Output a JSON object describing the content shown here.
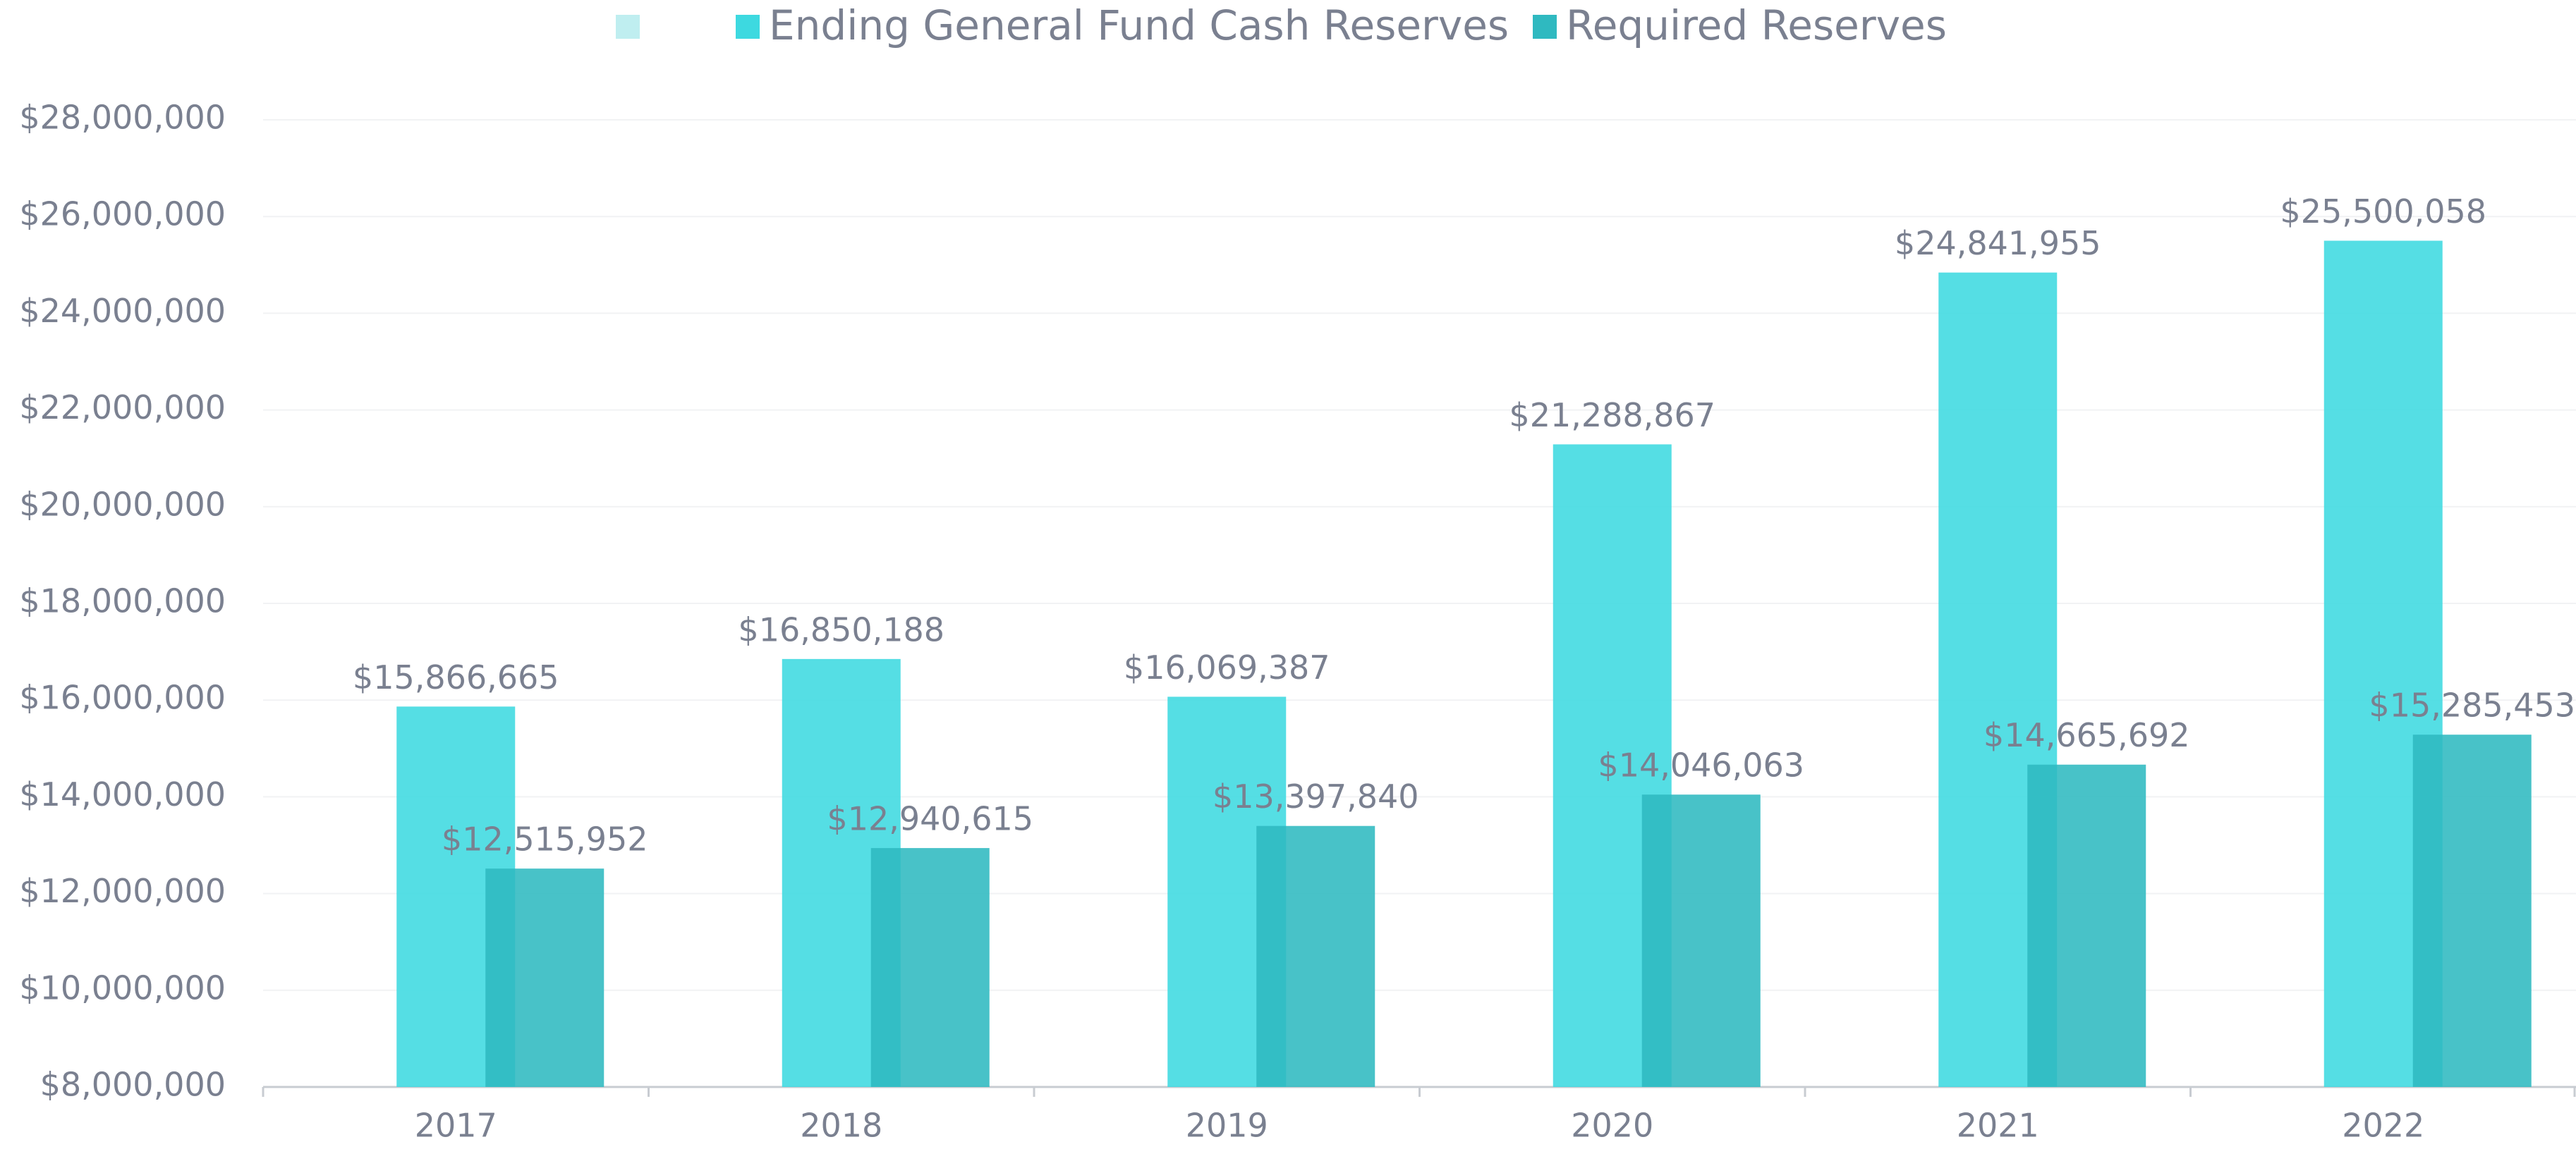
{
  "chart_data": {
    "type": "bar",
    "categories": [
      "2017",
      "2018",
      "2019",
      "2020",
      "2021",
      "2022"
    ],
    "series": [
      {
        "name": "Ending General Fund Cash Reserves",
        "color": "#3dd9e0",
        "values": [
          15866665,
          16850188,
          16069387,
          21288867,
          24841955,
          25500058
        ],
        "value_labels": [
          "$15,866,665",
          "$16,850,188",
          "$16,069,387",
          "$21,288,867",
          "$24,841,955",
          "$25,500,058"
        ]
      },
      {
        "name": "Required Reserves",
        "color": "#2fb9c0",
        "values": [
          12515952,
          12940615,
          13397840,
          14046063,
          14665692,
          15285453
        ],
        "value_labels": [
          "$12,515,952",
          "$12,940,615",
          "$13,397,840",
          "$14,046,063",
          "$14,665,692",
          "$15,285,453"
        ]
      }
    ],
    "ylim": [
      8000000,
      28000000
    ],
    "yticks": [
      {
        "value": 8000000,
        "label": "$8,000,000"
      },
      {
        "value": 10000000,
        "label": "$10,000,000"
      },
      {
        "value": 12000000,
        "label": "$12,000,000"
      },
      {
        "value": 14000000,
        "label": "$14,000,000"
      },
      {
        "value": 16000000,
        "label": "$16,000,000"
      },
      {
        "value": 18000000,
        "label": "$18,000,000"
      },
      {
        "value": 20000000,
        "label": "$20,000,000"
      },
      {
        "value": 22000000,
        "label": "$22,000,000"
      },
      {
        "value": 24000000,
        "label": "$24,000,000"
      },
      {
        "value": 26000000,
        "label": "$26,000,000"
      },
      {
        "value": 28000000,
        "label": "$28,000,000"
      }
    ],
    "grid": true,
    "legend": "top"
  }
}
